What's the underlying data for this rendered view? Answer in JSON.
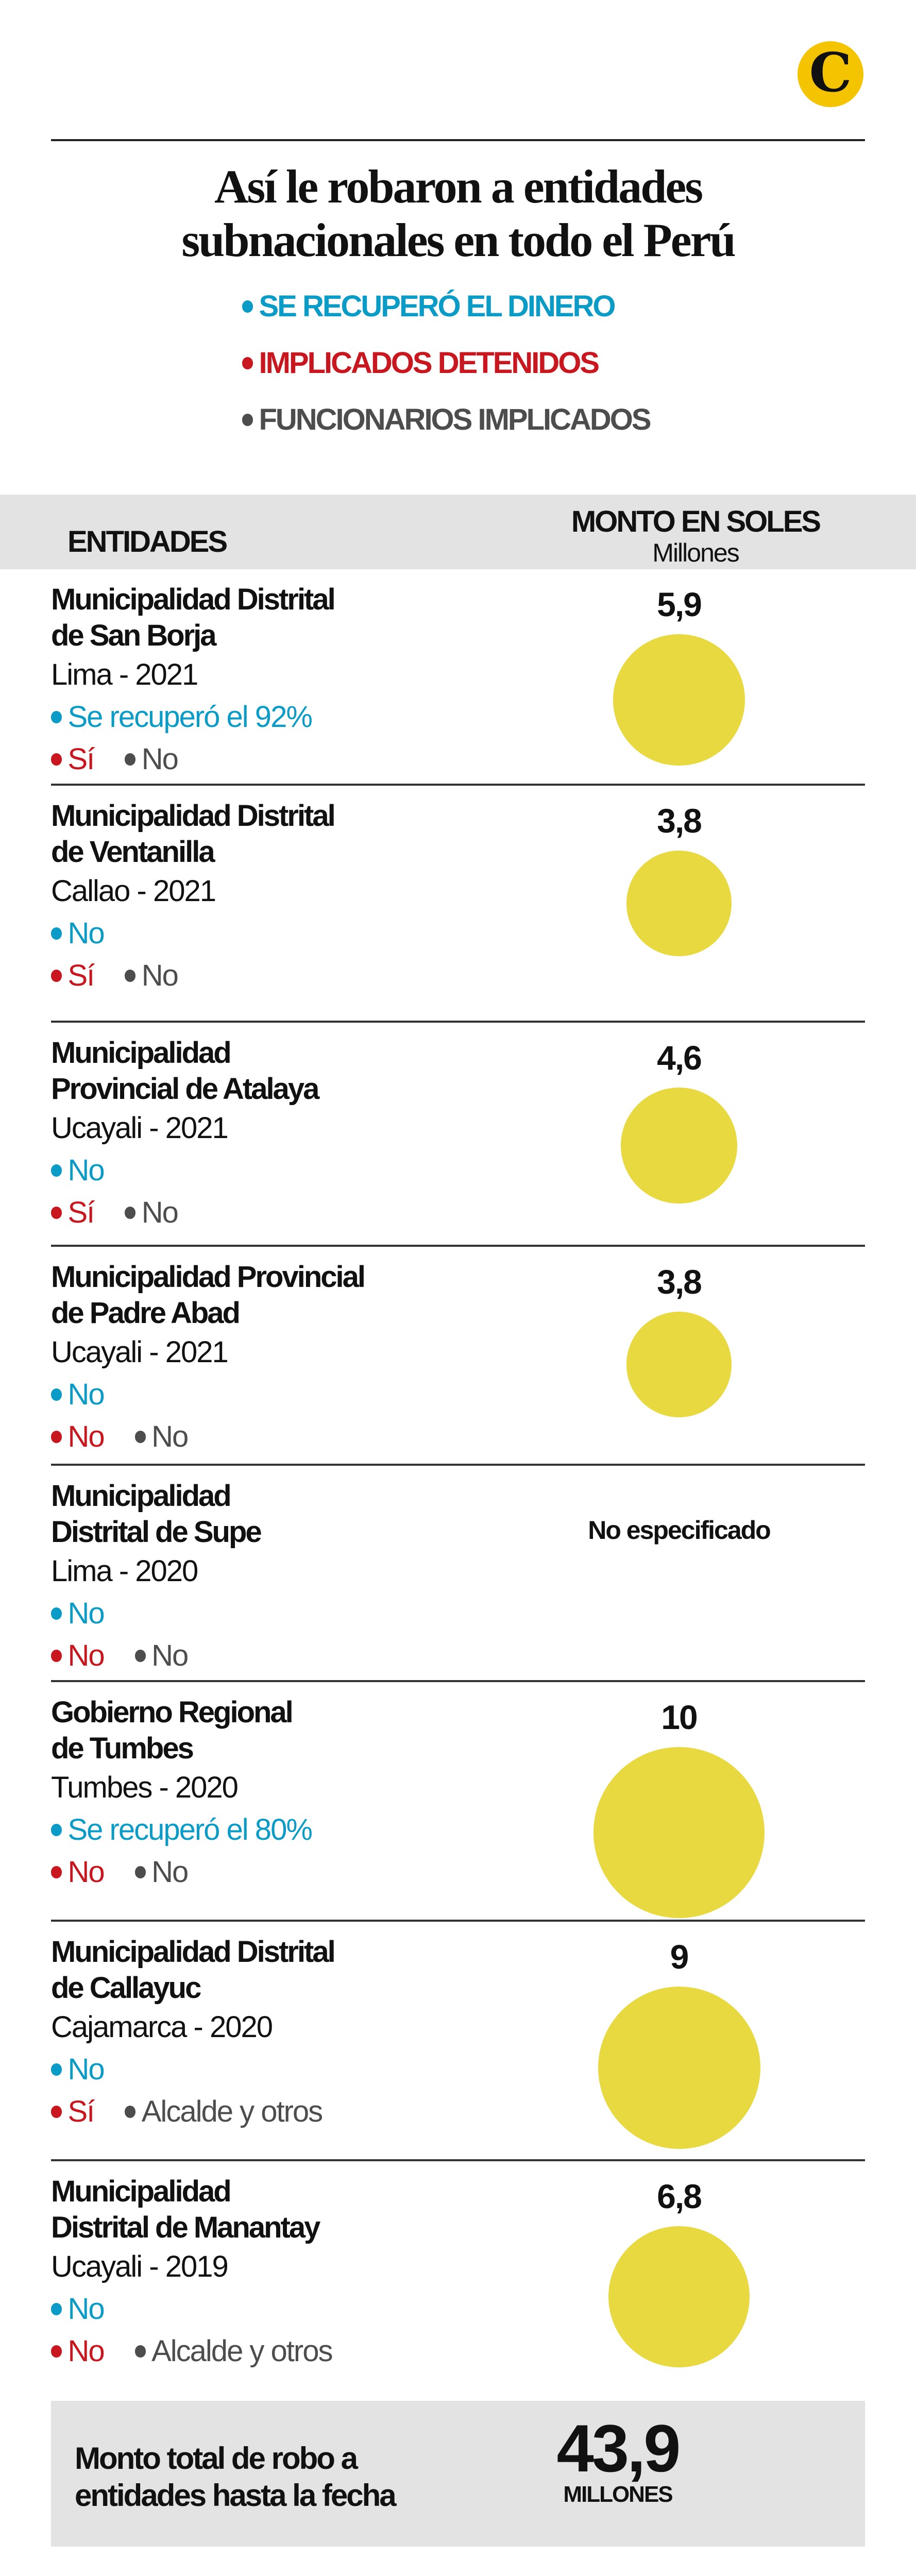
{
  "logo_text": "C",
  "title_lines": [
    "Así le robaron a entidades",
    "subnacionales en todo el Perú"
  ],
  "colors": {
    "recovered": "#0a9bc7",
    "detained": "#c8171e",
    "officials": "#4d4d4d",
    "bubble": "#e8d940",
    "band": "#e3e3e3",
    "logo": "#f5c400"
  },
  "legend": [
    {
      "label": "SE RECUPERÓ EL DINERO",
      "color": "#0a9bc7"
    },
    {
      "label": "IMPLICADOS DETENIDOS",
      "color": "#c8171e"
    },
    {
      "label": "FUNCIONARIOS IMPLICADOS",
      "color": "#4d4d4d"
    }
  ],
  "header": {
    "col1": "ENTIDADES",
    "col2": "MONTO EN SOLES",
    "col2_unit": "Millones"
  },
  "chart_data": {
    "type": "table",
    "columns": [
      "ENTIDADES",
      "MONTO EN SOLES"
    ],
    "unit": "Millones",
    "rows": [
      {
        "name_lines": [
          "Municipalidad Distrital",
          "de San Borja"
        ],
        "location": "Lima - 2021",
        "recovered": "Se recuperó el 92%",
        "detained": "Sí",
        "officials": "No",
        "amount_label": "5,9",
        "amount": 5.9
      },
      {
        "name_lines": [
          "Municipalidad Distrital",
          "de Ventanilla"
        ],
        "location": "Callao - 2021",
        "recovered": "No",
        "detained": "Sí",
        "officials": "No",
        "amount_label": "3,8",
        "amount": 3.8
      },
      {
        "name_lines": [
          "Municipalidad",
          "Provincial de Atalaya"
        ],
        "location": "Ucayali - 2021",
        "recovered": "No",
        "detained": "Sí",
        "officials": "No",
        "amount_label": "4,6",
        "amount": 4.6
      },
      {
        "name_lines": [
          "Municipalidad Provincial",
          "de Padre Abad"
        ],
        "location": "Ucayali - 2021",
        "recovered": "No",
        "detained": "No",
        "officials": "No",
        "amount_label": "3,8",
        "amount": 3.8
      },
      {
        "name_lines": [
          "Municipalidad",
          "Distrital de Supe"
        ],
        "location": "Lima - 2020",
        "recovered": "No",
        "detained": "No",
        "officials": "No",
        "amount_label": "No especificado",
        "amount": null
      },
      {
        "name_lines": [
          "Gobierno Regional",
          "de Tumbes"
        ],
        "location": "Tumbes - 2020",
        "recovered": "Se recuperó el 80%",
        "detained": "No",
        "officials": "No",
        "amount_label": "10",
        "amount": 10
      },
      {
        "name_lines": [
          "Municipalidad Distrital",
          "de Callayuc"
        ],
        "location": "Cajamarca - 2020",
        "recovered": "No",
        "detained": "Sí",
        "officials": "Alcalde y otros",
        "amount_label": "9",
        "amount": 9
      },
      {
        "name_lines": [
          "Municipalidad",
          "Distrital de Manantay"
        ],
        "location": "Ucayali - 2019",
        "recovered": "No",
        "detained": "No",
        "officials": "Alcalde y otros",
        "amount_label": "6,8",
        "amount": 6.8
      }
    ]
  },
  "total": {
    "label_lines": [
      "Monto total de robo a",
      "entidades hasta la fecha"
    ],
    "value": "43,9",
    "unit": "MILLONES"
  }
}
